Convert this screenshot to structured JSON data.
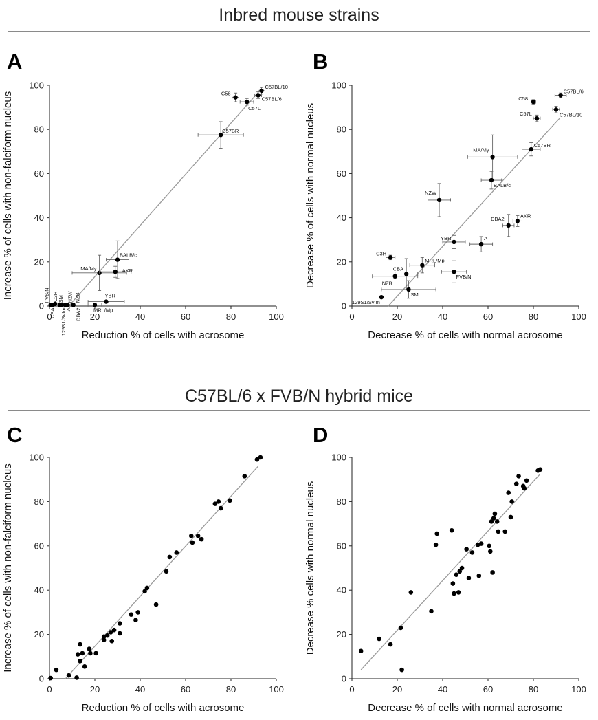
{
  "figure": {
    "top_title": "Inbred mouse strains",
    "bottom_title": "C57BL/6 x FVB/N hybrid mice",
    "panel_letters": [
      "A",
      "B",
      "C",
      "D"
    ]
  },
  "chart_data": [
    {
      "panel": "A",
      "type": "scatter",
      "xlabel": "Reduction % of cells with acrosome",
      "ylabel": "Increase % of cells with non-falciform nucleus",
      "xlim": [
        0,
        100
      ],
      "ylim": [
        0,
        100
      ],
      "xticks": [
        0,
        20,
        40,
        60,
        80,
        100
      ],
      "yticks": [
        0,
        20,
        40,
        60,
        80,
        100
      ],
      "fit_line": [
        [
          8.5,
          0
        ],
        [
          93.5,
          98.5
        ]
      ],
      "points": [
        {
          "label": "C57BL/10",
          "x": 93.5,
          "y": 97.5,
          "xerr": 1.5,
          "yerr": 1.5
        },
        {
          "label": "C58",
          "x": 82,
          "y": 94.5,
          "xerr": 1.5,
          "yerr": 2
        },
        {
          "label": "C57BL/6",
          "x": 92,
          "y": 95.5,
          "xerr": 1.5,
          "yerr": 1.5
        },
        {
          "label": "C57L",
          "x": 87,
          "y": 92.5,
          "xerr": 3,
          "yerr": 1.5
        },
        {
          "label": "C57BR",
          "x": 75.5,
          "y": 77.5,
          "xerr": 10,
          "yerr": 6
        },
        {
          "label": "BALB/c",
          "x": 30,
          "y": 21,
          "xerr": 5,
          "yerr": 8.5
        },
        {
          "label": "MA/My",
          "x": 22,
          "y": 15,
          "xerr": 12,
          "yerr": 8
        },
        {
          "label": "AKR",
          "x": 29,
          "y": 15.5,
          "xerr": 7,
          "yerr": 2.5
        },
        {
          "label": "YBR",
          "x": 25,
          "y": 2,
          "xerr": 8,
          "yerr": 0
        },
        {
          "label": "MRL/Mp",
          "x": 20,
          "y": 0.5,
          "xerr": 3,
          "yerr": 0
        },
        {
          "label": "FVB/N",
          "x": 0.5,
          "y": 0.5,
          "xerr": 0,
          "yerr": 0
        },
        {
          "label": "C3H",
          "x": 2.5,
          "y": 1,
          "xerr": 0,
          "yerr": 0
        },
        {
          "label": "SM",
          "x": 4.5,
          "y": 0.5,
          "xerr": 0,
          "yerr": 0
        },
        {
          "label": "NZW",
          "x": 8,
          "y": 0.5,
          "xerr": 0,
          "yerr": 0
        },
        {
          "label": "NZB",
          "x": 10.5,
          "y": 0.5,
          "xerr": 0,
          "yerr": 0
        },
        {
          "label": "CBA",
          "x": 1.5,
          "y": 0.5,
          "xerr": 0,
          "yerr": 0
        },
        {
          "label": "129S1/SvIm",
          "x": 5.5,
          "y": 0.5,
          "xerr": 0,
          "yerr": 0
        },
        {
          "label": "A",
          "x": 7,
          "y": 0.5,
          "xerr": 0,
          "yerr": 0
        },
        {
          "label": "DBA2",
          "x": 10.5,
          "y": 0.5,
          "xerr": 0,
          "yerr": 0
        }
      ]
    },
    {
      "panel": "B",
      "type": "scatter",
      "xlabel": "Decrease % of cells with normal acrosome",
      "ylabel": "Decrease % of cells with normal nucleus",
      "xlim": [
        0,
        100
      ],
      "ylim": [
        0,
        100
      ],
      "xticks": [
        0,
        20,
        40,
        60,
        80,
        100
      ],
      "yticks": [
        0,
        20,
        40,
        60,
        80,
        100
      ],
      "fit_line": [
        [
          16,
          0
        ],
        [
          91.5,
          85
        ]
      ],
      "points": [
        {
          "label": "C57BL/6",
          "x": 92,
          "y": 95.5,
          "xerr": 2.5,
          "yerr": 1
        },
        {
          "label": "C58",
          "x": 80,
          "y": 92.5,
          "xerr": 1,
          "yerr": 1
        },
        {
          "label": "C57L",
          "x": 81.5,
          "y": 85,
          "xerr": 1.5,
          "yerr": 1.5
        },
        {
          "label": "C57BL/10",
          "x": 90,
          "y": 89,
          "xerr": 1.5,
          "yerr": 1.5
        },
        {
          "label": "C57BR",
          "x": 79,
          "y": 71,
          "xerr": 4,
          "yerr": 3
        },
        {
          "label": "MA/My",
          "x": 62,
          "y": 67.5,
          "xerr": 11,
          "yerr": 10
        },
        {
          "label": "BALB/c",
          "x": 61.5,
          "y": 57,
          "xerr": 4.5,
          "yerr": 4
        },
        {
          "label": "NZW",
          "x": 38.5,
          "y": 48,
          "xerr": 5,
          "yerr": 7.5
        },
        {
          "label": "DBA2",
          "x": 69,
          "y": 36.5,
          "xerr": 2.5,
          "yerr": 5
        },
        {
          "label": "AKR",
          "x": 73,
          "y": 38.5,
          "xerr": 2,
          "yerr": 2.5
        },
        {
          "label": "A",
          "x": 57,
          "y": 28,
          "xerr": 5,
          "yerr": 3.5
        },
        {
          "label": "YBR",
          "x": 45,
          "y": 29,
          "xerr": 5,
          "yerr": 3
        },
        {
          "label": "C3H",
          "x": 17,
          "y": 22,
          "xerr": 2,
          "yerr": 1
        },
        {
          "label": "MRL/Mp",
          "x": 31,
          "y": 18.5,
          "xerr": 5.5,
          "yerr": 3.5
        },
        {
          "label": "CBA",
          "x": 24,
          "y": 14.5,
          "xerr": 5,
          "yerr": 7
        },
        {
          "label": "NZB",
          "x": 19,
          "y": 13.5,
          "xerr": 10,
          "yerr": 1
        },
        {
          "label": "FVB/N",
          "x": 45,
          "y": 15.5,
          "xerr": 5.5,
          "yerr": 5
        },
        {
          "label": "SM",
          "x": 25,
          "y": 7.5,
          "xerr": 12,
          "yerr": 4
        },
        {
          "label": "129S1/SvIm",
          "x": 13,
          "y": 4,
          "xerr": 0,
          "yerr": 0
        }
      ]
    },
    {
      "panel": "C",
      "type": "scatter",
      "xlabel": "Reduction % of cells with acrosome",
      "ylabel": "Increase % of cells with non-falciform nucleus",
      "xlim": [
        0,
        100
      ],
      "ylim": [
        0,
        100
      ],
      "xticks": [
        0,
        20,
        40,
        60,
        80,
        100
      ],
      "yticks": [
        0,
        20,
        40,
        60,
        80,
        100
      ],
      "fit_line": [
        [
          7,
          0
        ],
        [
          92,
          96
        ]
      ],
      "points": [
        {
          "x": 0.5,
          "y": 0.3
        },
        {
          "x": 3,
          "y": 4
        },
        {
          "x": 8.5,
          "y": 1.5
        },
        {
          "x": 12,
          "y": 0.5
        },
        {
          "x": 12.5,
          "y": 11
        },
        {
          "x": 13.5,
          "y": 15.5
        },
        {
          "x": 13.5,
          "y": 8
        },
        {
          "x": 14.5,
          "y": 11.5
        },
        {
          "x": 15.5,
          "y": 5.5
        },
        {
          "x": 17.5,
          "y": 13.5
        },
        {
          "x": 18,
          "y": 11.5
        },
        {
          "x": 20.5,
          "y": 11.5
        },
        {
          "x": 24,
          "y": 19
        },
        {
          "x": 24,
          "y": 17.5
        },
        {
          "x": 25.5,
          "y": 19.5
        },
        {
          "x": 27,
          "y": 21
        },
        {
          "x": 27.5,
          "y": 17
        },
        {
          "x": 28.5,
          "y": 22
        },
        {
          "x": 31,
          "y": 25
        },
        {
          "x": 31,
          "y": 20.5
        },
        {
          "x": 36,
          "y": 29
        },
        {
          "x": 38,
          "y": 26.5
        },
        {
          "x": 39,
          "y": 30
        },
        {
          "x": 42,
          "y": 39.5
        },
        {
          "x": 43,
          "y": 41
        },
        {
          "x": 47,
          "y": 33.5
        },
        {
          "x": 51.5,
          "y": 48.5
        },
        {
          "x": 53,
          "y": 55
        },
        {
          "x": 56,
          "y": 57
        },
        {
          "x": 62.5,
          "y": 64.5
        },
        {
          "x": 63,
          "y": 61.5
        },
        {
          "x": 65.5,
          "y": 64.5
        },
        {
          "x": 67,
          "y": 63
        },
        {
          "x": 73,
          "y": 79
        },
        {
          "x": 74.5,
          "y": 80
        },
        {
          "x": 75.5,
          "y": 77
        },
        {
          "x": 79.5,
          "y": 80.5
        },
        {
          "x": 86,
          "y": 91.5
        },
        {
          "x": 91.5,
          "y": 99
        },
        {
          "x": 93,
          "y": 100
        }
      ]
    },
    {
      "panel": "D",
      "type": "scatter",
      "xlabel": "Decrease % of cells with normal acrosome",
      "ylabel": "Decrease % cells with normal nucleus",
      "xlim": [
        0,
        100
      ],
      "ylim": [
        0,
        100
      ],
      "xticks": [
        0,
        20,
        40,
        60,
        80,
        100
      ],
      "yticks": [
        0,
        20,
        40,
        60,
        80,
        100
      ],
      "fit_line": [
        [
          4,
          4
        ],
        [
          83,
          92.5
        ]
      ],
      "points": [
        {
          "x": 4,
          "y": 12.5
        },
        {
          "x": 12,
          "y": 18
        },
        {
          "x": 17,
          "y": 15.5
        },
        {
          "x": 21.5,
          "y": 23
        },
        {
          "x": 22,
          "y": 4
        },
        {
          "x": 26,
          "y": 39
        },
        {
          "x": 35,
          "y": 30.5
        },
        {
          "x": 37,
          "y": 60.5
        },
        {
          "x": 37.5,
          "y": 65.5
        },
        {
          "x": 44,
          "y": 67
        },
        {
          "x": 44.5,
          "y": 43
        },
        {
          "x": 45,
          "y": 38.5
        },
        {
          "x": 46,
          "y": 47
        },
        {
          "x": 47,
          "y": 39
        },
        {
          "x": 47.5,
          "y": 48.5
        },
        {
          "x": 48.5,
          "y": 50
        },
        {
          "x": 50.5,
          "y": 58.5
        },
        {
          "x": 51.5,
          "y": 45.5
        },
        {
          "x": 53,
          "y": 57
        },
        {
          "x": 55.5,
          "y": 60.5
        },
        {
          "x": 56,
          "y": 46.5
        },
        {
          "x": 57,
          "y": 61
        },
        {
          "x": 60.5,
          "y": 60
        },
        {
          "x": 61,
          "y": 57.5
        },
        {
          "x": 61.5,
          "y": 71
        },
        {
          "x": 62,
          "y": 48
        },
        {
          "x": 62.5,
          "y": 72.5
        },
        {
          "x": 63,
          "y": 74.5
        },
        {
          "x": 64,
          "y": 71
        },
        {
          "x": 64.5,
          "y": 66.5
        },
        {
          "x": 67.5,
          "y": 66.5
        },
        {
          "x": 69,
          "y": 84
        },
        {
          "x": 70,
          "y": 73
        },
        {
          "x": 70.5,
          "y": 80
        },
        {
          "x": 72.5,
          "y": 88
        },
        {
          "x": 73.5,
          "y": 91.5
        },
        {
          "x": 75.5,
          "y": 87
        },
        {
          "x": 76,
          "y": 86
        },
        {
          "x": 77,
          "y": 89.5
        },
        {
          "x": 82,
          "y": 94
        },
        {
          "x": 83,
          "y": 94.5
        }
      ]
    }
  ]
}
